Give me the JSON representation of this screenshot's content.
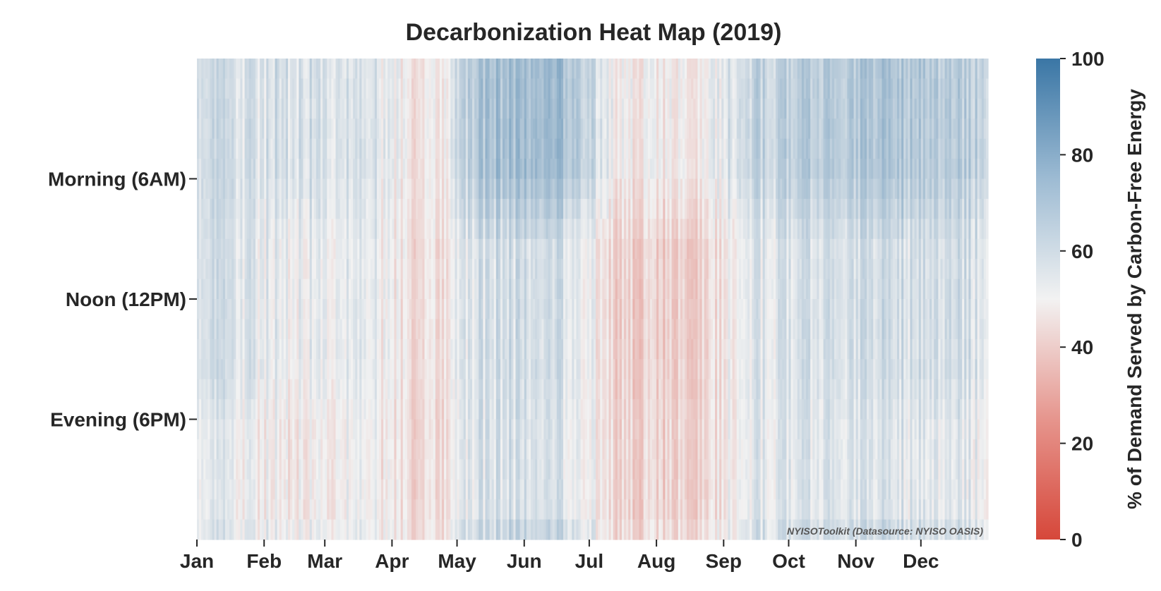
{
  "chart_data": {
    "type": "heatmap",
    "title": "Decarbonization Heat Map (2019)",
    "x_tick_labels": [
      "Jan",
      "Feb",
      "Mar",
      "Apr",
      "May",
      "Jun",
      "Jul",
      "Aug",
      "Sep",
      "Oct",
      "Nov",
      "Dec"
    ],
    "x_tick_day_of_year": [
      1,
      32,
      60,
      91,
      121,
      152,
      182,
      213,
      244,
      274,
      305,
      335
    ],
    "days_in_year": 365,
    "y_tick_labels": [
      "Morning (6AM)",
      "Noon (12PM)",
      "Evening (6PM)"
    ],
    "y_tick_hours": [
      6,
      12,
      18
    ],
    "hours_per_day": 24,
    "colorbar": {
      "label": "% of Demand Served by Carbon-Free Energy",
      "range": [
        0,
        100
      ],
      "ticks": [
        "0",
        "20",
        "40",
        "60",
        "80",
        "100"
      ],
      "colormap": "diverging red-white-blue",
      "low_color": "#d6473a",
      "mid_color": "#f2f2f2",
      "high_color": "#3a76a5"
    },
    "monthly_profile": {
      "months": [
        "Jan",
        "Feb",
        "Mar",
        "Apr",
        "May",
        "Jun",
        "Jul",
        "Aug",
        "Sep",
        "Oct",
        "Nov",
        "Dec"
      ],
      "night_pct": [
        57,
        58,
        56,
        45,
        70,
        72,
        48,
        47,
        62,
        66,
        68,
        64
      ],
      "midday_pct": [
        56,
        52,
        53,
        43,
        58,
        58,
        40,
        39,
        55,
        58,
        58,
        57
      ],
      "evening_pct": [
        51,
        48,
        50,
        42,
        57,
        56,
        41,
        40,
        54,
        56,
        55,
        53
      ]
    },
    "watermark": "NYISOToolkit (Datasource: NYISO OASIS)"
  }
}
